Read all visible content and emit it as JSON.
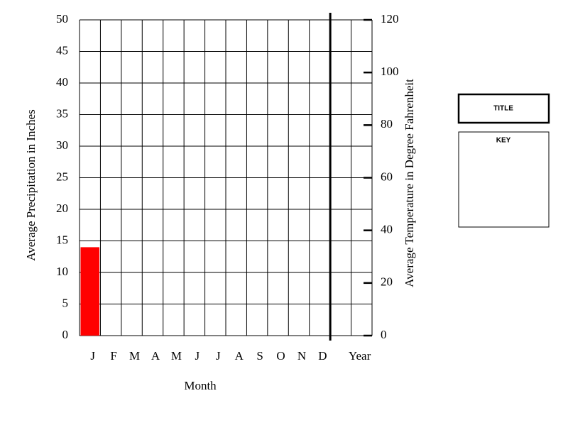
{
  "chart_data": {
    "type": "bar",
    "title": "TITLE",
    "legend_title": "KEY",
    "x_label": "Month",
    "y_label": "Average Precipitation in Inches",
    "y2_label": "Average Temperature in Degree Fahrenheit",
    "categories": [
      "J",
      "F",
      "M",
      "A",
      "M",
      "J",
      "J",
      "A",
      "S",
      "O",
      "N",
      "D",
      "Year"
    ],
    "values": [
      14,
      null,
      null,
      null,
      null,
      null,
      null,
      null,
      null,
      null,
      null,
      null,
      null
    ],
    "color": "#ff0000",
    "ylim": [
      0,
      50
    ],
    "yticks": [
      0,
      5,
      10,
      15,
      20,
      25,
      30,
      35,
      40,
      45,
      50
    ],
    "y2lim": [
      0,
      120
    ],
    "y2ticks": [
      0,
      20,
      40,
      60,
      80,
      100,
      120
    ],
    "grid": true
  }
}
